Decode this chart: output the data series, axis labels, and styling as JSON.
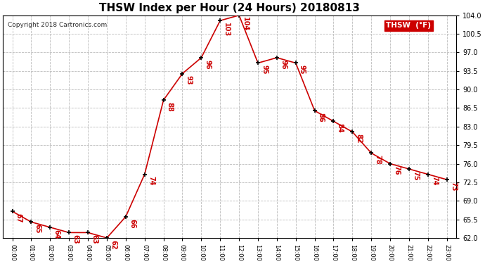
{
  "title": "THSW Index per Hour (24 Hours) 20180813",
  "copyright": "Copyright 2018 Cartronics.com",
  "legend_label": "THSW  (°F)",
  "hours": [
    "00:00",
    "01:00",
    "02:00",
    "03:00",
    "04:00",
    "05:00",
    "06:00",
    "07:00",
    "08:00",
    "09:00",
    "10:00",
    "11:00",
    "12:00",
    "13:00",
    "14:00",
    "15:00",
    "16:00",
    "17:00",
    "18:00",
    "19:00",
    "20:00",
    "21:00",
    "22:00",
    "23:00"
  ],
  "data_points": [
    [
      0,
      67
    ],
    [
      1,
      65
    ],
    [
      2,
      64
    ],
    [
      3,
      63
    ],
    [
      4,
      63
    ],
    [
      5,
      62
    ],
    [
      6,
      66
    ],
    [
      7,
      74
    ],
    [
      8,
      88
    ],
    [
      9,
      93
    ],
    [
      10,
      96
    ],
    [
      11,
      103
    ],
    [
      12,
      104
    ],
    [
      13,
      95
    ],
    [
      14,
      96
    ],
    [
      15,
      95
    ],
    [
      16,
      86
    ],
    [
      17,
      84
    ],
    [
      18,
      82
    ],
    [
      19,
      78
    ],
    [
      20,
      76
    ],
    [
      21,
      75
    ],
    [
      22,
      74
    ],
    [
      23,
      73
    ]
  ],
  "ylim": [
    62.0,
    104.0
  ],
  "yticks": [
    62.0,
    65.5,
    69.0,
    72.5,
    76.0,
    79.5,
    83.0,
    86.5,
    90.0,
    93.5,
    97.0,
    100.5,
    104.0
  ],
  "line_color": "#cc0000",
  "marker_color": "#000000",
  "bg_color": "#ffffff",
  "grid_color": "#bbbbbb",
  "title_fontsize": 11,
  "annotation_fontsize": 7,
  "legend_bg": "#cc0000",
  "legend_fg": "#ffffff",
  "copyright_fontsize": 6.5,
  "tick_fontsize": 7,
  "xtick_fontsize": 6
}
